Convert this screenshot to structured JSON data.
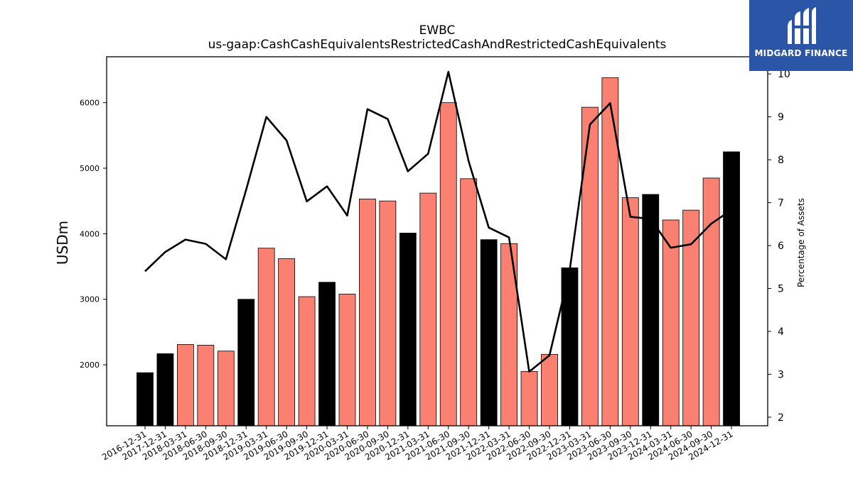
{
  "chart_data": {
    "type": "bar+line",
    "title": "EWBC",
    "subtitle": "us-gaap:CashCashEquivalentsRestrictedCashAndRestrictedCashEquivalents",
    "ylabel": "USDm",
    "y2label": "Percentage of Assets",
    "ylim": [
      1070,
      6700
    ],
    "y2lim": [
      1.8,
      10.4
    ],
    "yticks": [
      2000,
      3000,
      4000,
      5000,
      6000
    ],
    "y2ticks": [
      2,
      3,
      4,
      5,
      6,
      7,
      8,
      9,
      10
    ],
    "categories": [
      "2016-12-31",
      "2017-12-31",
      "2018-03-31",
      "2018-06-30",
      "2018-09-30",
      "2018-12-31",
      "2019-03-31",
      "2019-06-30",
      "2019-09-30",
      "2019-12-31",
      "2020-03-31",
      "2020-06-30",
      "2020-09-30",
      "2020-12-31",
      "2021-03-31",
      "2021-06-30",
      "2021-09-30",
      "2021-12-31",
      "2022-03-31",
      "2022-06-30",
      "2022-09-30",
      "2022-12-31",
      "2023-03-31",
      "2023-06-30",
      "2023-09-30",
      "2023-12-31",
      "2024-03-31",
      "2024-06-30",
      "2024-09-30",
      "2024-12-31"
    ],
    "values": [
      1880,
      2170,
      2310,
      2300,
      2210,
      3000,
      3780,
      3620,
      3040,
      3260,
      3080,
      4530,
      4500,
      4010,
      4620,
      6000,
      4840,
      3910,
      3850,
      1900,
      2160,
      3480,
      5930,
      6380,
      4550,
      4600,
      4210,
      4360,
      4850,
      5250
    ],
    "bar_colors": [
      "#000000",
      "#000000",
      "#fa8072",
      "#fa8072",
      "#fa8072",
      "#000000",
      "#fa8072",
      "#fa8072",
      "#fa8072",
      "#000000",
      "#fa8072",
      "#fa8072",
      "#fa8072",
      "#000000",
      "#fa8072",
      "#fa8072",
      "#fa8072",
      "#000000",
      "#fa8072",
      "#fa8072",
      "#fa8072",
      "#000000",
      "#fa8072",
      "#fa8072",
      "#fa8072",
      "#000000",
      "#fa8072",
      "#fa8072",
      "#fa8072",
      "#000000"
    ],
    "pct_of_assets": [
      5.4,
      5.85,
      6.14,
      6.04,
      5.68,
      7.3,
      9.0,
      8.45,
      7.03,
      7.38,
      6.7,
      9.18,
      8.95,
      7.73,
      8.14,
      10.05,
      7.97,
      6.42,
      6.19,
      3.06,
      3.44,
      5.42,
      8.82,
      9.32,
      6.67,
      6.62,
      5.95,
      6.03,
      6.51,
      6.83
    ],
    "line_color": "#000000",
    "grid": false
  },
  "logo": {
    "text": "MIDGARD FINANCE",
    "background": "#2b56a8"
  }
}
